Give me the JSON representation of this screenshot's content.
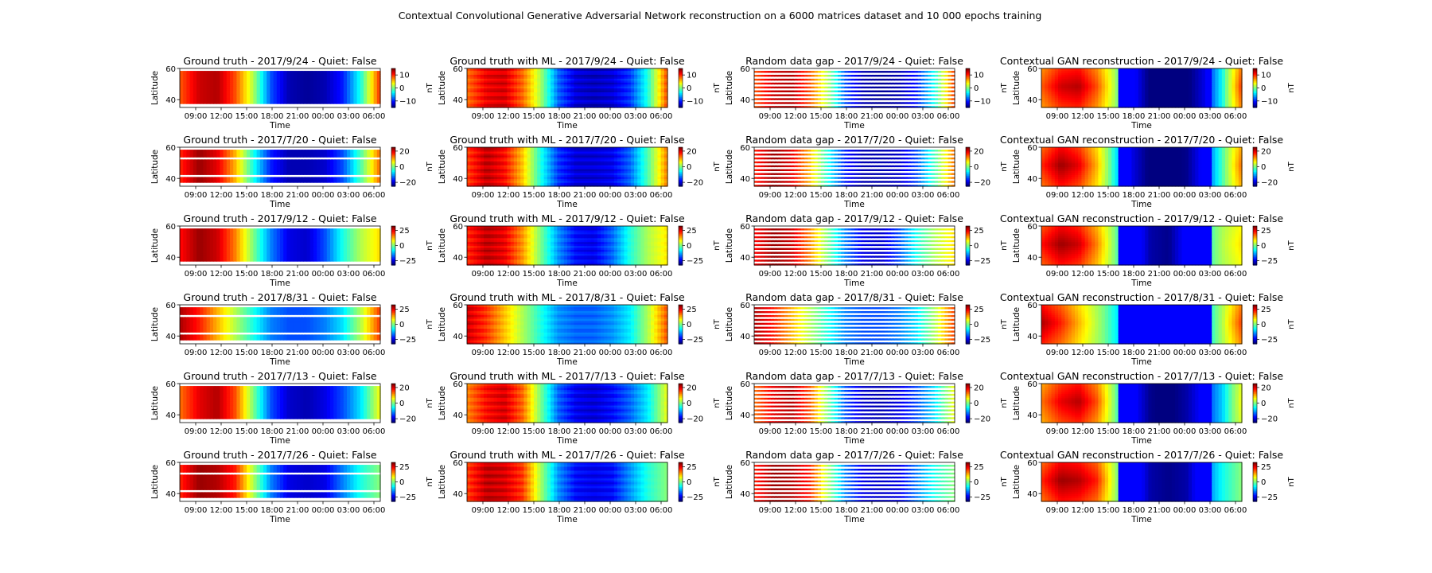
{
  "figure": {
    "title": "Contextual Convolutional Generative Adversarial Network reconstruction on a 6000 matrices dataset and 10 000 epochs training"
  },
  "colors": {
    "colormap": "jet",
    "gap": "#ffffff",
    "axis": "#000000"
  },
  "chart_data": {
    "type": "heatmap",
    "colormap": "jet",
    "grid": false,
    "xlabel": "Time",
    "ylabel": "Latitude",
    "colorbar_label": "nT",
    "x_ticks": [
      "09:00",
      "12:00",
      "15:00",
      "18:00",
      "21:00",
      "00:00",
      "03:00",
      "06:00"
    ],
    "y_ticks": [
      40,
      60
    ],
    "y_range": [
      35,
      60
    ],
    "panel_types": [
      "Ground truth",
      "Ground truth with ML",
      "Random data gap",
      "Contextual GAN reconstruction"
    ],
    "rows": [
      {
        "date": "2017/9/24",
        "titles": [
          "Ground truth - 2017/9/24 - Quiet: False",
          "Ground truth with ML - 2017/9/24 - Quiet: False",
          "Random data gap - 2017/9/24 - Quiet: False",
          "Contextual GAN reconstruction - 2017/9/24 - Quiet: False"
        ],
        "cbar_ticks": [
          10,
          0,
          -10
        ],
        "vmin": -15,
        "vmax": 15,
        "profile": [
          0.6,
          0.85,
          0.9,
          0.6,
          0.1,
          -0.6,
          -0.9,
          -0.95,
          -0.9,
          -0.7,
          -0.2,
          0.6
        ]
      },
      {
        "date": "2017/7/20",
        "titles": [
          "Ground truth - 2017/7/20 - Quiet: False",
          "Ground truth with ML - 2017/7/20 - Quiet: False",
          "Random data gap - 2017/7/20 - Quiet: False",
          "Contextual GAN reconstruction - 2017/7/20 - Quiet: False"
        ],
        "cbar_ticks": [
          20,
          0,
          -20
        ],
        "vmin": -25,
        "vmax": 25,
        "profile": [
          0.7,
          0.95,
          0.8,
          0.4,
          -0.2,
          -0.7,
          -0.9,
          -0.9,
          -0.85,
          -0.6,
          -0.1,
          0.5
        ]
      },
      {
        "date": "2017/9/12",
        "titles": [
          "Ground truth - 2017/9/12 - Quiet: False",
          "Ground truth with ML - 2017/9/12 - Quiet: False",
          "Random data gap - 2017/9/12 - Quiet: False",
          "Contextual GAN reconstruction - 2017/9/12 - Quiet: False"
        ],
        "cbar_ticks": [
          25,
          0,
          -25
        ],
        "vmin": -32,
        "vmax": 32,
        "profile": [
          0.75,
          0.95,
          0.85,
          0.5,
          0.0,
          -0.5,
          -0.8,
          -0.85,
          -0.6,
          -0.2,
          0.1,
          0.3
        ]
      },
      {
        "date": "2017/8/31",
        "titles": [
          "Ground truth - 2017/8/31 - Quiet: False",
          "Ground truth with ML - 2017/8/31 - Quiet: False",
          "Random data gap - 2017/8/31 - Quiet: False",
          "Contextual GAN reconstruction - 2017/8/31 - Quiet: False"
        ],
        "cbar_ticks": [
          25,
          0,
          -25
        ],
        "vmin": -32,
        "vmax": 32,
        "profile": [
          0.9,
          0.7,
          0.4,
          0.1,
          -0.2,
          -0.5,
          -0.6,
          -0.6,
          -0.5,
          -0.3,
          0.1,
          0.6
        ]
      },
      {
        "date": "2017/7/13",
        "titles": [
          "Ground truth - 2017/7/13 - Quiet: False",
          "Ground truth with ML - 2017/7/13 - Quiet: False",
          "Random data gap - 2017/7/13 - Quiet: False",
          "Contextual GAN reconstruction - 2017/7/13 - Quiet: False"
        ],
        "cbar_ticks": [
          20,
          0,
          -20
        ],
        "vmin": -25,
        "vmax": 25,
        "profile": [
          0.55,
          0.8,
          0.9,
          0.6,
          0.0,
          -0.6,
          -0.85,
          -0.9,
          -0.8,
          -0.6,
          -0.3,
          0.2
        ]
      },
      {
        "date": "2017/7/26",
        "titles": [
          "Ground truth - 2017/7/26 - Quiet: False",
          "Ground truth with ML - 2017/7/26 - Quiet: False",
          "Random data gap - 2017/7/26 - Quiet: False",
          "Contextual GAN reconstruction - 2017/7/26 - Quiet: False"
        ],
        "cbar_ticks": [
          25,
          0,
          -25
        ],
        "vmin": -32,
        "vmax": 32,
        "profile": [
          0.7,
          0.95,
          0.9,
          0.7,
          0.1,
          -0.5,
          -0.8,
          -0.85,
          -0.8,
          -0.5,
          -0.2,
          0.0
        ]
      }
    ]
  }
}
